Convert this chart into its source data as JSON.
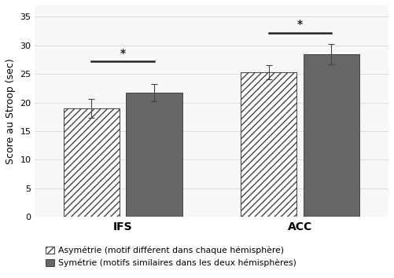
{
  "groups": [
    "IFS",
    "ACC"
  ],
  "asymmetry_values": [
    19.0,
    25.3
  ],
  "symmetry_values": [
    21.7,
    28.5
  ],
  "asymmetry_errors": [
    1.7,
    1.2
  ],
  "symmetry_errors": [
    1.5,
    1.8
  ],
  "ylabel": "Score au Stroop (sec)",
  "ylim": [
    0,
    37
  ],
  "yticks": [
    0,
    5,
    10,
    15,
    20,
    25,
    30,
    35
  ],
  "bar_width": 0.35,
  "group_centers": [
    0.55,
    1.65
  ],
  "bar_gap": 0.04,
  "asymmetry_color": "white",
  "symmetry_color": "#666666",
  "hatch_pattern": "////",
  "edge_color": "#444444",
  "sig_bracket_ifs_y": 27.2,
  "sig_bracket_acc_y": 32.2,
  "background_color": "#ffffff",
  "plot_area_color": "#f8f8f8",
  "legend_asym_label": "Asymétrie (motif différent dans chaque hémisphère)",
  "legend_sym_label": "Symétrie (motifs similaires dans les deux hémisphères)",
  "axis_fontsize": 9,
  "tick_fontsize": 8,
  "legend_fontsize": 7.8,
  "grid_color": "#d8d8d8",
  "xlim": [
    0.0,
    2.2
  ]
}
